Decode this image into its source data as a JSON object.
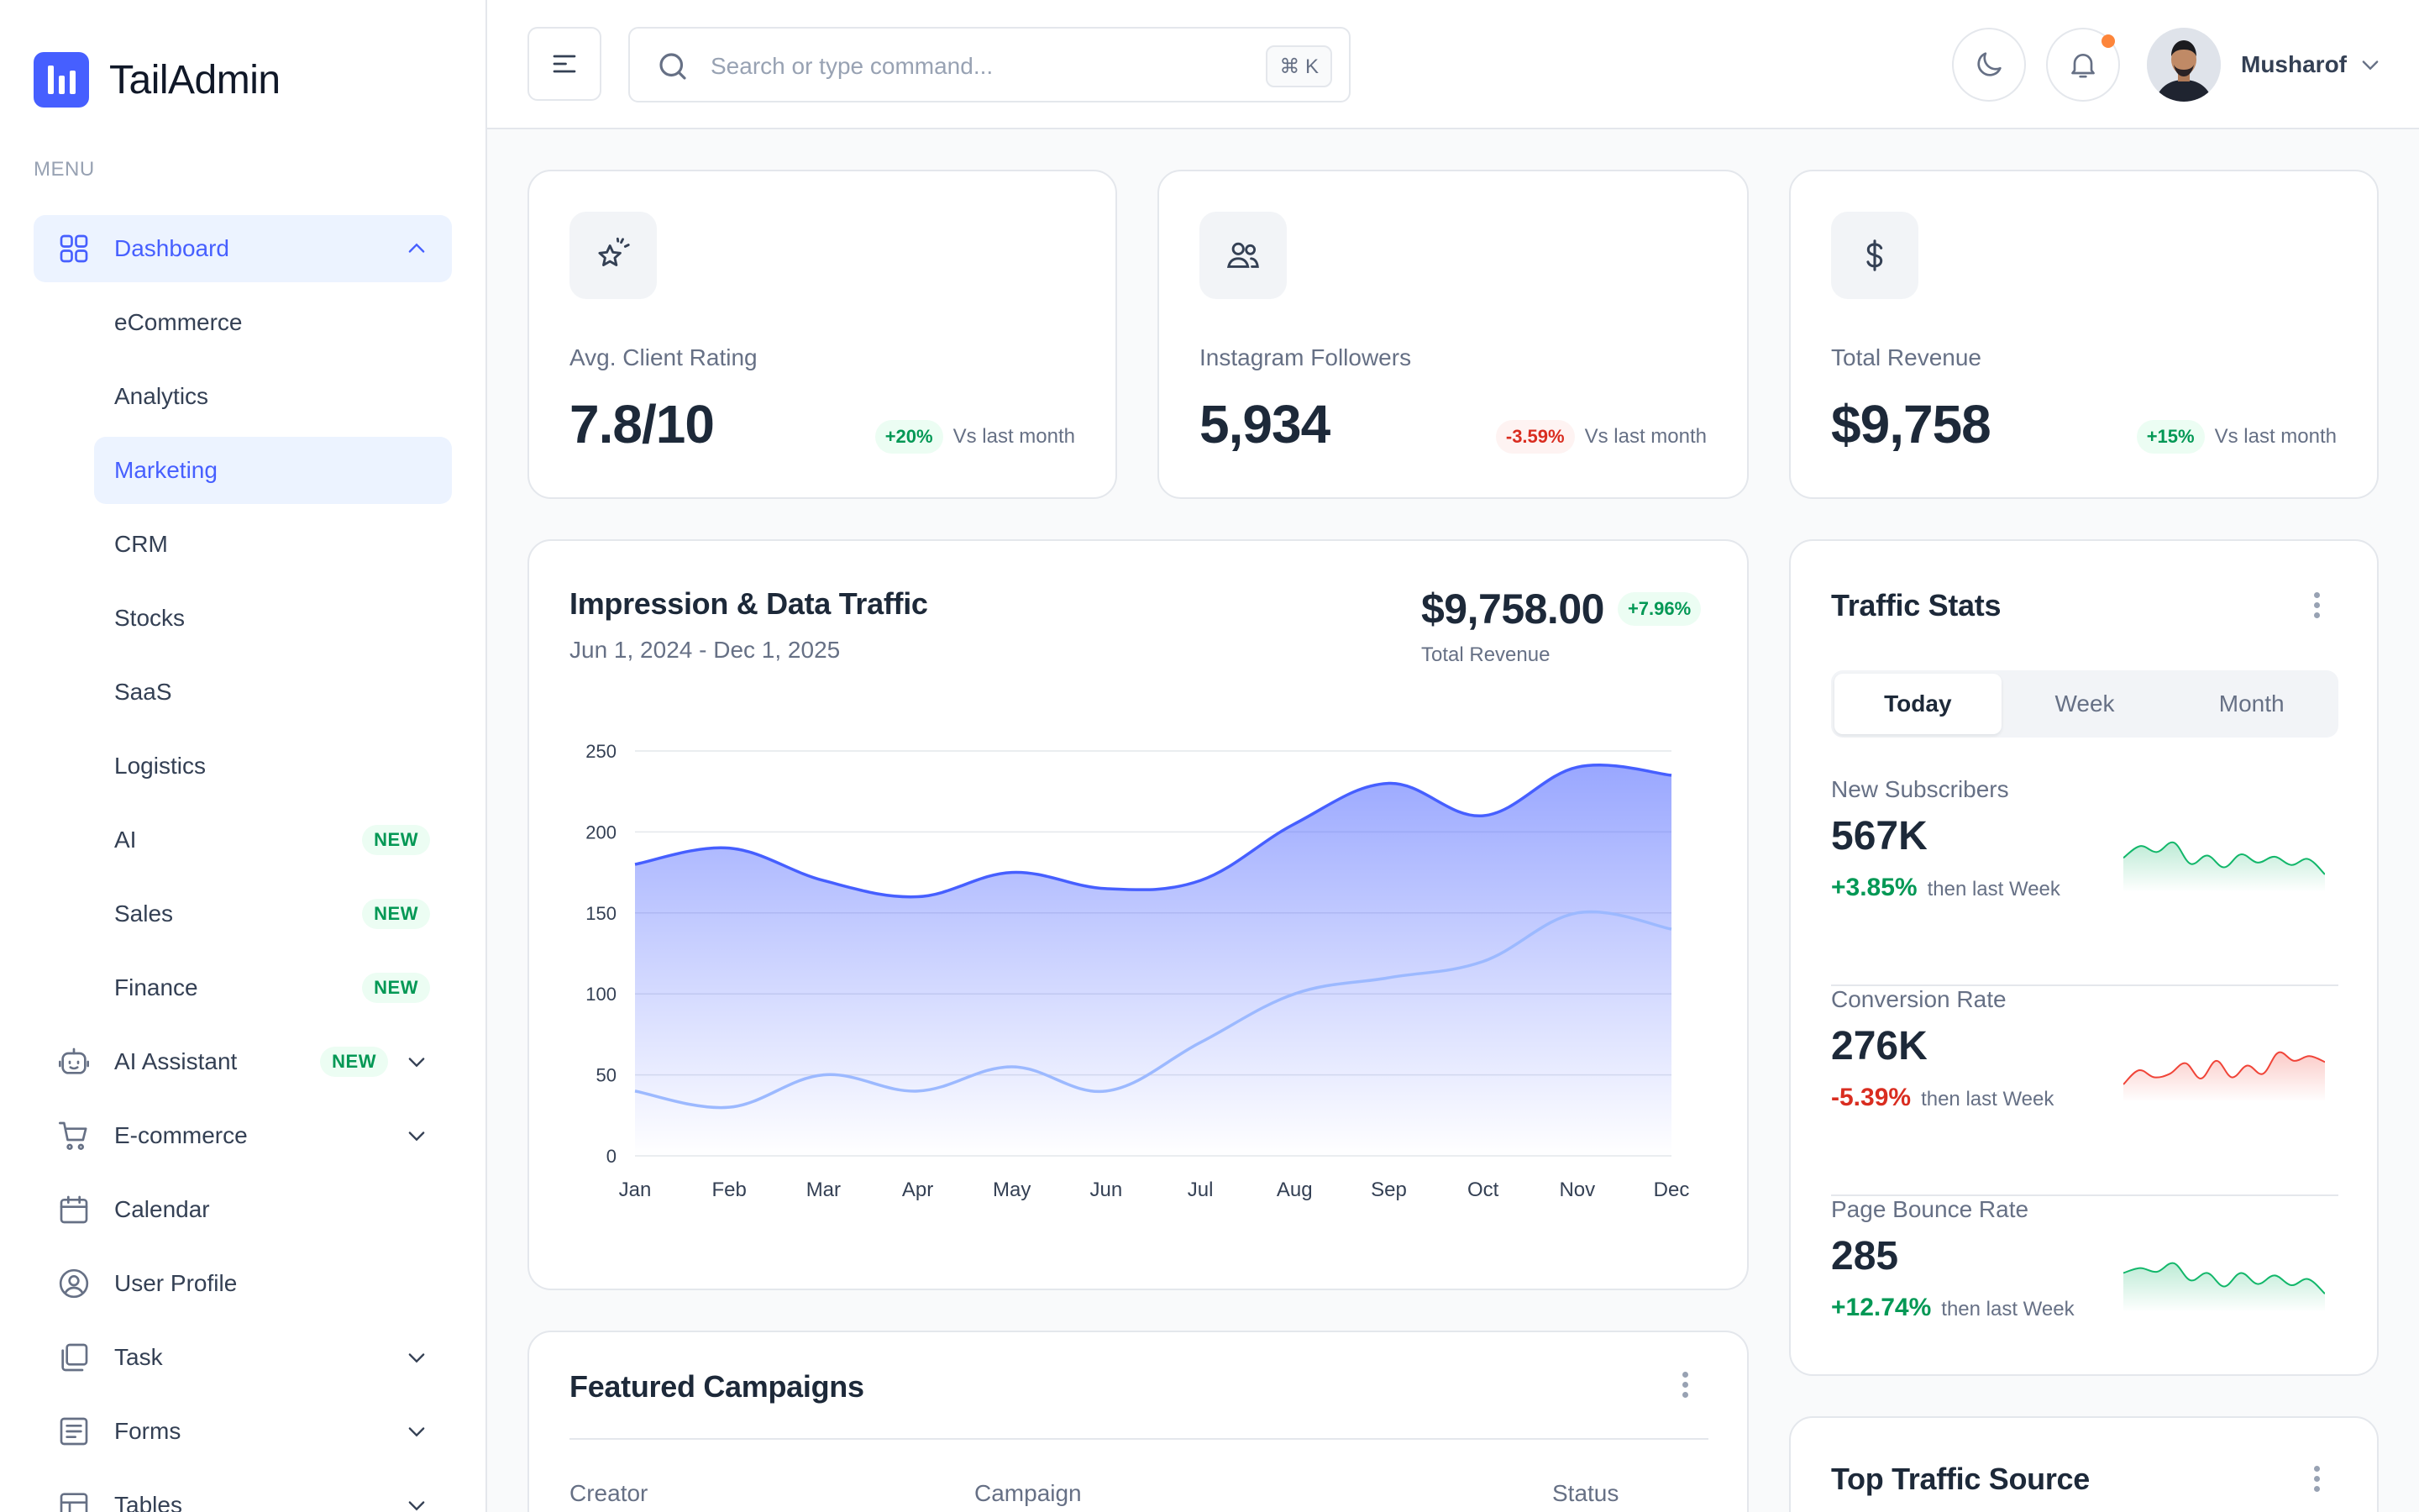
{
  "brand": {
    "name": "TailAdmin"
  },
  "sidebar": {
    "menu_heading": "MENU",
    "dashboard": {
      "label": "Dashboard",
      "submenu": [
        {
          "label": "eCommerce",
          "badge": ""
        },
        {
          "label": "Analytics",
          "badge": ""
        },
        {
          "label": "Marketing",
          "badge": ""
        },
        {
          "label": "CRM",
          "badge": ""
        },
        {
          "label": "Stocks",
          "badge": ""
        },
        {
          "label": "SaaS",
          "badge": ""
        },
        {
          "label": "Logistics",
          "badge": ""
        },
        {
          "label": "AI",
          "badge": "NEW"
        },
        {
          "label": "Sales",
          "badge": "NEW"
        },
        {
          "label": "Finance",
          "badge": "NEW"
        }
      ]
    },
    "items": [
      {
        "label": "AI Assistant",
        "badge": "NEW",
        "icon": "robot-icon"
      },
      {
        "label": "E-commerce",
        "icon": "cart-icon"
      },
      {
        "label": "Calendar",
        "icon": "calendar-icon"
      },
      {
        "label": "User Profile",
        "icon": "user-circle-icon"
      },
      {
        "label": "Task",
        "icon": "task-icon"
      },
      {
        "label": "Forms",
        "icon": "forms-icon"
      },
      {
        "label": "Tables",
        "icon": "table-icon"
      }
    ]
  },
  "header": {
    "search_placeholder": "Search or type command...",
    "search_shortcut": "⌘ K",
    "user_name": "Musharof"
  },
  "metrics": [
    {
      "label": "Avg. Client Rating",
      "value": "7.8/10",
      "change": "+20%",
      "direction": "up",
      "note": "Vs last month",
      "icon": "star-sparkle-icon"
    },
    {
      "label": "Instagram Followers",
      "value": "5,934",
      "change": "-3.59%",
      "direction": "down",
      "note": "Vs last month",
      "icon": "users-icon"
    },
    {
      "label": "Total Revenue",
      "value": "$9,758",
      "change": "+15%",
      "direction": "up",
      "note": "Vs last month",
      "icon": "dollar-icon"
    }
  ],
  "impression": {
    "title": "Impression & Data Traffic",
    "date_range": "Jun 1, 2024 - Dec 1, 2025",
    "total": "$9,758.00",
    "total_change": "+7.96%",
    "total_label": "Total Revenue"
  },
  "chart_data": {
    "type": "area",
    "categories": [
      "Jan",
      "Feb",
      "Mar",
      "Apr",
      "May",
      "Jun",
      "Jul",
      "Aug",
      "Sep",
      "Oct",
      "Nov",
      "Dec"
    ],
    "series": [
      {
        "values": [
          180,
          190,
          170,
          160,
          175,
          165,
          170,
          205,
          230,
          210,
          240,
          235
        ],
        "color": "#465fff"
      },
      {
        "values": [
          40,
          30,
          50,
          40,
          55,
          40,
          70,
          100,
          110,
          120,
          150,
          140
        ],
        "color": "#9cb9ff"
      }
    ],
    "ylim": [
      0,
      250
    ],
    "yticks": [
      0,
      50,
      100,
      150,
      200,
      250
    ],
    "grid": true
  },
  "traffic": {
    "title": "Traffic Stats",
    "tabs": [
      "Today",
      "Week",
      "Month"
    ],
    "stats": [
      {
        "label": "New Subscribers",
        "value": "567K",
        "change": "+3.85%",
        "direction": "up",
        "note": "then last Week",
        "color": "#12b76a",
        "spark": [
          5,
          6,
          5.5,
          6.3,
          4.5,
          5.2,
          4.2,
          5.3,
          4.6,
          5.1,
          4.4,
          4.9,
          3.6
        ]
      },
      {
        "label": "Conversion Rate",
        "value": "276K",
        "change": "-5.39%",
        "direction": "down",
        "note": "then last Week",
        "color": "#f04438",
        "spark": [
          3,
          4.2,
          3.6,
          3.9,
          4.8,
          3.5,
          5,
          3.6,
          4.6,
          3.9,
          5.7,
          5,
          5.4,
          4.9
        ]
      },
      {
        "label": "Page Bounce Rate",
        "value": "285",
        "change": "+12.74%",
        "direction": "up",
        "note": "then last Week",
        "color": "#12b76a",
        "spark": [
          5,
          5.4,
          5.1,
          5.8,
          4.4,
          5,
          3.9,
          5,
          4.1,
          4.8,
          4,
          4.5,
          3.3
        ]
      }
    ]
  },
  "campaigns": {
    "title": "Featured Campaigns",
    "columns": [
      "Creator",
      "Campaign",
      "Status"
    ]
  },
  "top_traffic": {
    "title": "Top Traffic Source"
  }
}
